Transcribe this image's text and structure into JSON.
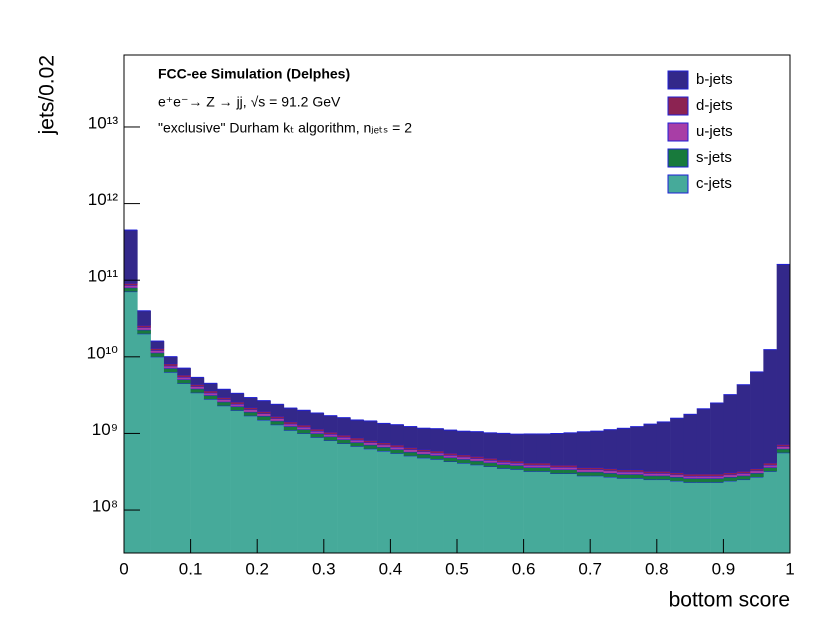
{
  "chart_data": {
    "type": "histogram",
    "stacked": true,
    "log_y": true,
    "annotations": [
      "FCC-ee Simulation (Delphes)",
      "e⁺e⁻→ Z → jj, √s = 91.2 GeV",
      "\"exclusive\" Durham kₜ algorithm, nⱼₑₜₛ = 2"
    ],
    "xlabel": "bottom score",
    "ylabel": "jets/0.02",
    "xlim": [
      0,
      1
    ],
    "ylim": [
      27500000,
      87000000000000
    ],
    "xticks": [
      0,
      0.1,
      0.2,
      0.3,
      0.4,
      0.5,
      0.6,
      0.7,
      0.8,
      0.9,
      1
    ],
    "yticks": [
      {
        "value": 100000000,
        "label": "10⁸"
      },
      {
        "value": 1000000000,
        "label": "10⁹"
      },
      {
        "value": 10000000000,
        "label": "10¹⁰"
      },
      {
        "value": 100000000000,
        "label": "10¹¹"
      },
      {
        "value": 1000000000000,
        "label": "10¹²"
      },
      {
        "value": 10000000000000,
        "label": "10¹³"
      }
    ],
    "legend": "upper right",
    "edge_color": "#1f1fd6",
    "bins": [
      0,
      0.02,
      0.04,
      0.06,
      0.08,
      0.1,
      0.12,
      0.14,
      0.16,
      0.18,
      0.2,
      0.22,
      0.24,
      0.26,
      0.28,
      0.3,
      0.32,
      0.34,
      0.36,
      0.38,
      0.4,
      0.42,
      0.44,
      0.46,
      0.48,
      0.5,
      0.52,
      0.54,
      0.56,
      0.58,
      0.6,
      0.62,
      0.64,
      0.66,
      0.68,
      0.7,
      0.72,
      0.74,
      0.76,
      0.78,
      0.8,
      0.82,
      0.84,
      0.86,
      0.88,
      0.9,
      0.92,
      0.94,
      0.96,
      0.98,
      1
    ],
    "series": [
      {
        "name": "b-jets",
        "color": "#33288a",
        "values": [
          360000000000.0,
          14000000000.0,
          3100000000.0,
          1900000000.0,
          1300000000.0,
          1000000000.0,
          900000000.0,
          800000000.0,
          750000000.0,
          750000000.0,
          730000000.0,
          720000000.0,
          720000000.0,
          710000000.0,
          700000000.0,
          660000000.0,
          650000000.0,
          620000000.0,
          640000000.0,
          590000000.0,
          590000000.0,
          570000000.0,
          550000000.0,
          560000000.0,
          550000000.0,
          540000000.0,
          550000000.0,
          540000000.0,
          550000000.0,
          540000000.0,
          570000000.0,
          570000000.0,
          610000000.0,
          630000000.0,
          690000000.0,
          710000000.0,
          770000000.0,
          830000000.0,
          890000000.0,
          1000000000.0,
          1090000000.0,
          1270000000.0,
          1480000000.0,
          1800000000.0,
          2200000000.0,
          2900000000.0,
          4000000000.0,
          6000000000.0,
          12000000000.0,
          160000000000.0
        ]
      },
      {
        "name": "d-jets",
        "color": "#8c2352",
        "values": [
          5900000000.0,
          1700000000.0,
          830000000.0,
          530000000.0,
          380000000.0,
          280000000.0,
          230000000.0,
          190000000.0,
          170000000.0,
          140000000.0,
          130000000.0,
          110000000.0,
          92000000.0,
          83000000.0,
          74000000.0,
          68000000.0,
          62000000.0,
          57000000.0,
          53000000.0,
          49000000.0,
          46000000.0,
          43000000.0,
          40000000.0,
          38000000.0,
          36000000.0,
          34000000.0,
          33000000.0,
          31000000.0,
          29000000.0,
          28000000.0,
          27000000.0,
          27000000.0,
          25000000.0,
          25000000.0,
          23000000.0,
          23000000.0,
          23000000.0,
          22000000.0,
          22000000.0,
          21000000.0,
          21000000.0,
          20000000.0,
          19000000.0,
          19000000.0,
          19000000.0,
          20000000.0,
          21000000.0,
          23000000.0,
          27000000.0,
          47000000.0
        ]
      },
      {
        "name": "u-jets",
        "color": "#a83ea6",
        "values": [
          5900000000.0,
          1700000000.0,
          830000000.0,
          530000000.0,
          380000000.0,
          280000000.0,
          230000000.0,
          190000000.0,
          170000000.0,
          140000000.0,
          130000000.0,
          110000000.0,
          92000000.0,
          83000000.0,
          74000000.0,
          68000000.0,
          62000000.0,
          57000000.0,
          53000000.0,
          49000000.0,
          46000000.0,
          43000000.0,
          40000000.0,
          38000000.0,
          36000000.0,
          34000000.0,
          33000000.0,
          31000000.0,
          29000000.0,
          28000000.0,
          27000000.0,
          27000000.0,
          25000000.0,
          25000000.0,
          23000000.0,
          23000000.0,
          23000000.0,
          22000000.0,
          22000000.0,
          21000000.0,
          21000000.0,
          20000000.0,
          19000000.0,
          19000000.0,
          19000000.0,
          20000000.0,
          21000000.0,
          23000000.0,
          27000000.0,
          47000000.0
        ]
      },
      {
        "name": "s-jets",
        "color": "#187a3c",
        "values": [
          8900000000.0,
          2500000000.0,
          1300000000.0,
          790000000.0,
          560000000.0,
          430000000.0,
          350000000.0,
          290000000.0,
          250000000.0,
          210000000.0,
          190000000.0,
          160000000.0,
          140000000.0,
          130000000.0,
          110000000.0,
          100000000.0,
          93000000.0,
          85000000.0,
          79000000.0,
          74000000.0,
          69000000.0,
          64000000.0,
          60000000.0,
          58000000.0,
          54000000.0,
          51000000.0,
          49000000.0,
          46000000.0,
          44000000.0,
          43000000.0,
          40000000.0,
          40000000.0,
          38000000.0,
          38000000.0,
          35000000.0,
          35000000.0,
          34000000.0,
          33000000.0,
          33000000.0,
          31000000.0,
          31000000.0,
          30000000.0,
          29000000.0,
          29000000.0,
          29000000.0,
          30000000.0,
          31000000.0,
          34000000.0,
          40000000.0,
          70000000.0
        ]
      },
      {
        "name": "c-jets",
        "color": "#46aa9a",
        "values": [
          71000000000.0,
          20000000000.0,
          10000000000.0,
          6300000000.0,
          4500000000.0,
          3400000000.0,
          2800000000.0,
          2300000000.0,
          2000000000.0,
          1700000000.0,
          1500000000.0,
          1300000000.0,
          1100000000.0,
          1000000000.0,
          890000000.0,
          810000000.0,
          740000000.0,
          680000000.0,
          630000000.0,
          590000000.0,
          550000000.0,
          510000000.0,
          480000000.0,
          460000000.0,
          430000000.0,
          410000000.0,
          390000000.0,
          370000000.0,
          350000000.0,
          340000000.0,
          320000000.0,
          320000000.0,
          300000000.0,
          300000000.0,
          280000000.0,
          280000000.0,
          270000000.0,
          260000000.0,
          260000000.0,
          250000000.0,
          250000000.0,
          240000000.0,
          230000000.0,
          230000000.0,
          230000000.0,
          240000000.0,
          250000000.0,
          270000000.0,
          320000000.0,
          560000000.0
        ]
      }
    ]
  }
}
